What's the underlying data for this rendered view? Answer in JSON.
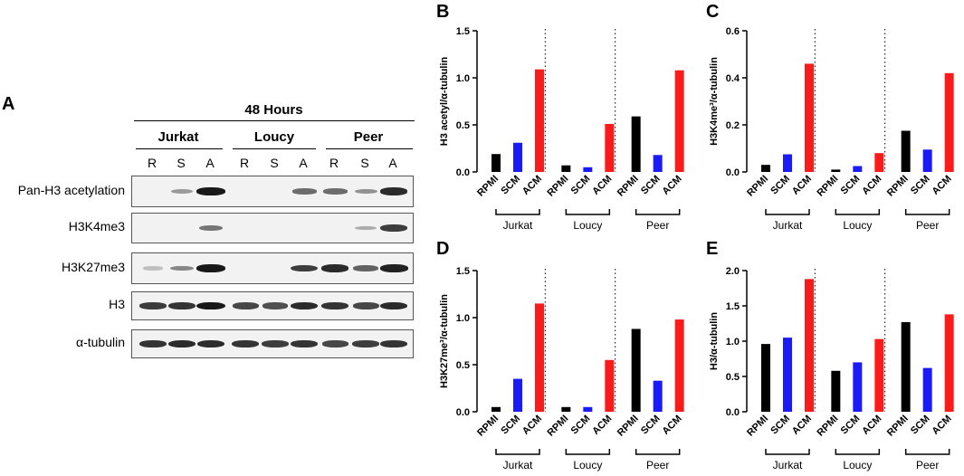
{
  "panel_a": {
    "letter": "A",
    "timepoint": "48 Hours",
    "groups": [
      "Jurkat",
      "Loucy",
      "Peer"
    ],
    "lanes": [
      "R",
      "S",
      "A",
      "R",
      "S",
      "A",
      "R",
      "S",
      "A"
    ],
    "rows": [
      {
        "label": "Pan-H3 acetylation",
        "intensities": [
          0.0,
          0.25,
          0.95,
          0.0,
          0.0,
          0.5,
          0.5,
          0.3,
          0.85
        ]
      },
      {
        "label": "H3K4me3",
        "intensities": [
          0.0,
          0.0,
          0.45,
          0.0,
          0.0,
          0.0,
          0.0,
          0.15,
          0.75
        ]
      },
      {
        "label": "H3K27me3",
        "intensities": [
          0.05,
          0.35,
          0.95,
          0.0,
          0.0,
          0.75,
          0.85,
          0.55,
          0.9
        ]
      },
      {
        "label": "H3",
        "intensities": [
          0.75,
          0.8,
          0.95,
          0.7,
          0.65,
          0.85,
          0.8,
          0.7,
          0.85
        ]
      },
      {
        "label": "α-tubulin",
        "intensities": [
          0.8,
          0.85,
          0.85,
          0.8,
          0.75,
          0.8,
          0.7,
          0.75,
          0.8
        ]
      }
    ]
  },
  "chart_data": [
    {
      "panel": "B",
      "type": "bar",
      "ylabel": "H3 acetyl/α-tubulin",
      "ylim": [
        0,
        1.5
      ],
      "yticks": [
        "0.0",
        "0.5",
        "1.0",
        "1.5"
      ],
      "categories": [
        "RPMI",
        "SCM",
        "ACM"
      ],
      "groups": [
        "Jurkat",
        "Loucy",
        "Peer"
      ],
      "colors": [
        "#000000",
        "#1a1aff",
        "#ff1a1a"
      ],
      "values": [
        [
          0.19,
          0.31,
          1.09
        ],
        [
          0.07,
          0.05,
          0.51
        ],
        [
          0.59,
          0.18,
          1.08
        ]
      ]
    },
    {
      "panel": "C",
      "type": "bar",
      "ylabel": "H3K4me³/α-tubulin",
      "ylim": [
        0,
        0.6
      ],
      "yticks": [
        "0.0",
        "0.2",
        "0.4",
        "0.6"
      ],
      "categories": [
        "RPMI",
        "SCM",
        "ACM"
      ],
      "groups": [
        "Jurkat",
        "Loucy",
        "Peer"
      ],
      "colors": [
        "#000000",
        "#1a1aff",
        "#ff1a1a"
      ],
      "values": [
        [
          0.03,
          0.075,
          0.46
        ],
        [
          0.01,
          0.025,
          0.08
        ],
        [
          0.175,
          0.095,
          0.42
        ]
      ]
    },
    {
      "panel": "D",
      "type": "bar",
      "ylabel": "H3K27me³/α-tubulin",
      "ylim": [
        0,
        1.5
      ],
      "yticks": [
        "0.0",
        "0.5",
        "1.0",
        "1.5"
      ],
      "categories": [
        "RPMI",
        "SCM",
        "ACM"
      ],
      "groups": [
        "Jurkat",
        "Loucy",
        "Peer"
      ],
      "colors": [
        "#000000",
        "#1a1aff",
        "#ff1a1a"
      ],
      "values": [
        [
          0.05,
          0.35,
          1.15
        ],
        [
          0.05,
          0.05,
          0.55
        ],
        [
          0.88,
          0.33,
          0.98
        ]
      ]
    },
    {
      "panel": "E",
      "type": "bar",
      "ylabel": "H3/α-tubulin",
      "ylim": [
        0,
        2.0
      ],
      "yticks": [
        "0.0",
        "0.5",
        "1.0",
        "1.5",
        "2.0"
      ],
      "categories": [
        "RPMI",
        "SCM",
        "ACM"
      ],
      "groups": [
        "Jurkat",
        "Loucy",
        "Peer"
      ],
      "colors": [
        "#000000",
        "#1a1aff",
        "#ff1a1a"
      ],
      "values": [
        [
          0.96,
          1.05,
          1.88
        ],
        [
          0.58,
          0.7,
          1.03
        ],
        [
          1.27,
          0.62,
          1.38
        ]
      ]
    }
  ]
}
